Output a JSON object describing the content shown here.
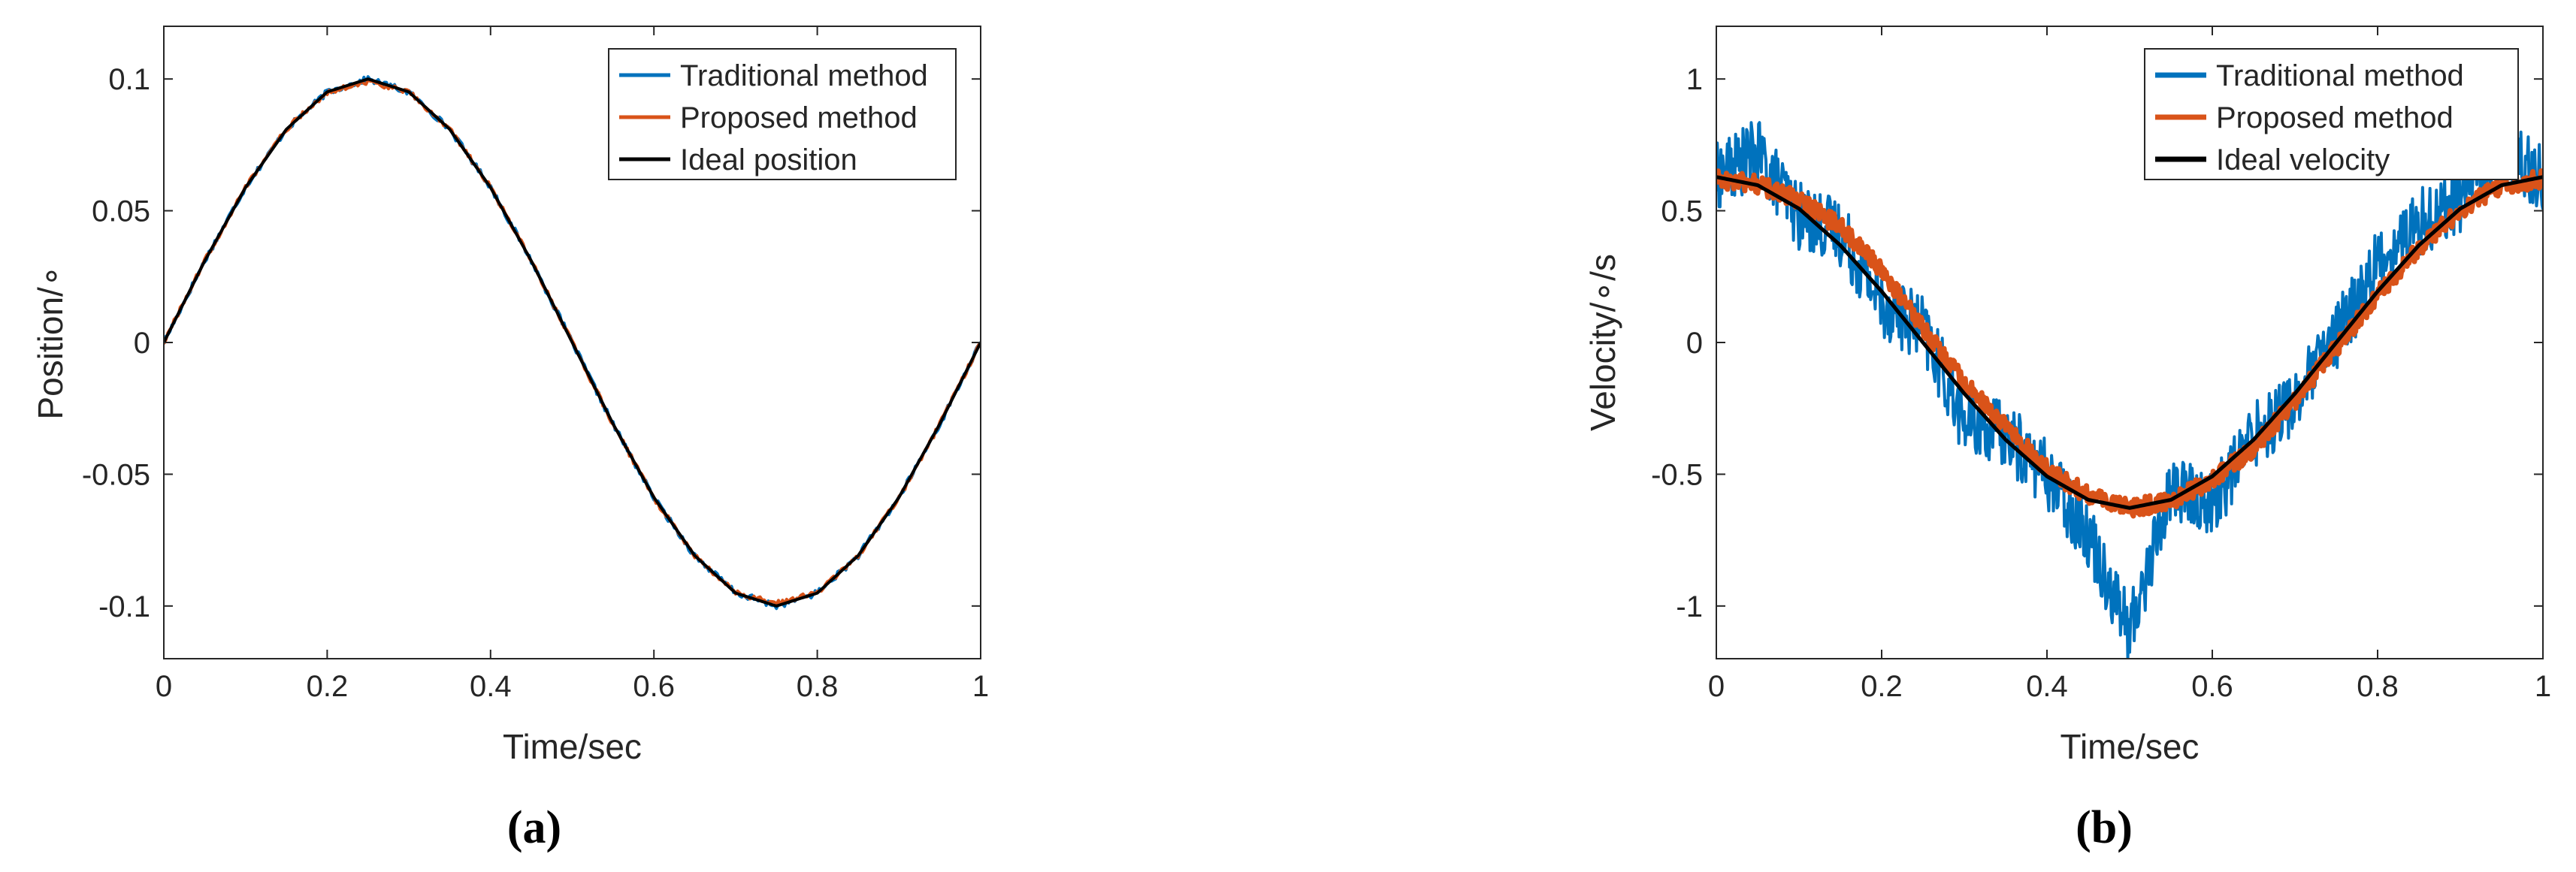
{
  "chart_data": [
    {
      "type": "line",
      "panel_label": "(a)",
      "xlabel": "Time/sec",
      "ylabel": "Position/∘",
      "xlim": [
        0,
        1
      ],
      "ylim": [
        -0.12,
        0.12
      ],
      "xticks": [
        "0",
        "0.2",
        "0.4",
        "0.6",
        "0.8",
        "1"
      ],
      "xtick_values": [
        0,
        0.2,
        0.4,
        0.6,
        0.8,
        1
      ],
      "yticks": [
        "-0.1",
        "-0.05",
        "0",
        "0.05",
        "0.1"
      ],
      "ytick_values": [
        -0.1,
        -0.05,
        0,
        0.05,
        0.1
      ],
      "grid": false,
      "legend_position": "top-right",
      "x": [
        0,
        0.05,
        0.1,
        0.15,
        0.2,
        0.25,
        0.3,
        0.35,
        0.4,
        0.45,
        0.5,
        0.55,
        0.6,
        0.65,
        0.7,
        0.75,
        0.8,
        0.85,
        0.9,
        0.95,
        1
      ],
      "series": [
        {
          "name": "Traditional method",
          "color": "#0072BD",
          "values": [
            0.0,
            0.031,
            0.059,
            0.081,
            0.095,
            0.1,
            0.095,
            0.081,
            0.059,
            0.031,
            0.0,
            -0.031,
            -0.059,
            -0.081,
            -0.095,
            -0.1,
            -0.095,
            -0.081,
            -0.059,
            -0.031,
            0.0
          ]
        },
        {
          "name": "Proposed method",
          "color": "#D95319",
          "values": [
            0.0,
            0.031,
            0.059,
            0.081,
            0.095,
            0.099,
            0.095,
            0.081,
            0.059,
            0.031,
            0.0,
            -0.031,
            -0.059,
            -0.081,
            -0.095,
            -0.099,
            -0.095,
            -0.081,
            -0.059,
            -0.031,
            0.0
          ]
        },
        {
          "name": "Ideal position",
          "color": "#000000",
          "values": [
            0.0,
            0.0309,
            0.0588,
            0.0809,
            0.0951,
            0.1,
            0.0951,
            0.0809,
            0.0588,
            0.0309,
            0.0,
            -0.0309,
            -0.0588,
            -0.0809,
            -0.0951,
            -0.1,
            -0.0951,
            -0.0809,
            -0.0588,
            -0.0309,
            0.0
          ]
        }
      ]
    },
    {
      "type": "line",
      "panel_label": "(b)",
      "xlabel": "Time/sec",
      "ylabel": "Velocity/∘/s",
      "xlim": [
        0,
        1
      ],
      "ylim": [
        -1.2,
        1.2
      ],
      "xticks": [
        "0",
        "0.2",
        "0.4",
        "0.6",
        "0.8",
        "1"
      ],
      "xtick_values": [
        0,
        0.2,
        0.4,
        0.6,
        0.8,
        1
      ],
      "yticks": [
        "-1",
        "-0.5",
        "0",
        "0.5",
        "1"
      ],
      "ytick_values": [
        -1,
        -0.5,
        0,
        0.5,
        1
      ],
      "grid": false,
      "legend_position": "top-right",
      "x": [
        0,
        0.05,
        0.1,
        0.15,
        0.2,
        0.25,
        0.3,
        0.35,
        0.4,
        0.45,
        0.5,
        0.55,
        0.6,
        0.65,
        0.7,
        0.75,
        0.8,
        0.85,
        0.9,
        0.95,
        1
      ],
      "series": [
        {
          "name": "Traditional method",
          "color": "#0072BD",
          "values": [
            0.63,
            0.72,
            0.48,
            0.42,
            0.15,
            0.05,
            -0.3,
            -0.35,
            -0.5,
            -0.72,
            -1.1,
            -0.55,
            -0.62,
            -0.35,
            -0.22,
            0.02,
            0.3,
            0.45,
            0.55,
            0.75,
            0.62
          ]
        },
        {
          "name": "Proposed method",
          "color": "#D95319",
          "values": [
            0.62,
            0.6,
            0.54,
            0.44,
            0.28,
            0.05,
            -0.15,
            -0.32,
            -0.48,
            -0.58,
            -0.63,
            -0.6,
            -0.52,
            -0.4,
            -0.22,
            -0.02,
            0.18,
            0.36,
            0.5,
            0.6,
            0.62
          ]
        },
        {
          "name": "Ideal velocity",
          "color": "#000000",
          "values": [
            0.628,
            0.597,
            0.508,
            0.369,
            0.194,
            0.0,
            -0.194,
            -0.369,
            -0.508,
            -0.597,
            -0.628,
            -0.597,
            -0.508,
            -0.369,
            -0.194,
            0.0,
            0.194,
            0.369,
            0.508,
            0.597,
            0.628
          ]
        }
      ]
    }
  ]
}
